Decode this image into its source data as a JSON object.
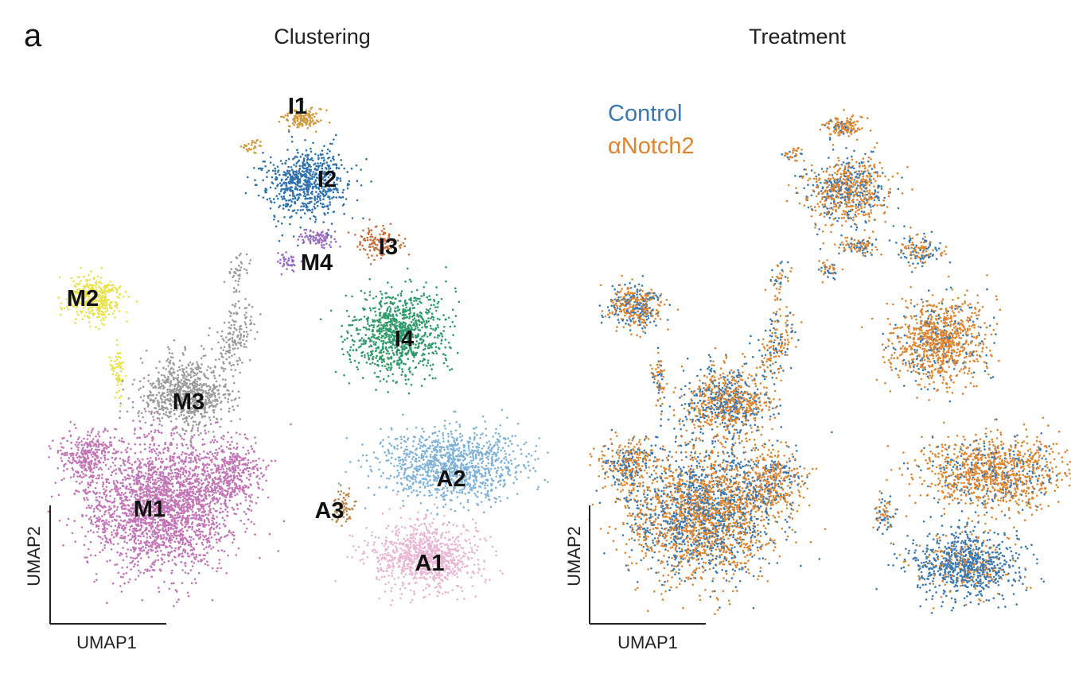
{
  "figure": {
    "panel_letter": "a"
  },
  "chart_data": [
    {
      "type": "scatter",
      "title": "Clustering",
      "xlabel": "UMAP1",
      "ylabel": "UMAP2",
      "grid": false,
      "colors": {
        "M1": "#c374b6",
        "M2": "#e8e34a",
        "M3": "#9b9b9b",
        "M4": "#9a6bc4",
        "I1": "#d39a3e",
        "I2": "#2f72b0",
        "I3": "#c8703d",
        "I4": "#2e9a6a",
        "A1": "#eab4d3",
        "A2": "#7fb2da",
        "A3": "#c0874a"
      },
      "clusters": [
        {
          "label": "I1"
        },
        {
          "label": "I2"
        },
        {
          "label": "I3"
        },
        {
          "label": "M4"
        },
        {
          "label": "M2"
        },
        {
          "label": "I4"
        },
        {
          "label": "M3"
        },
        {
          "label": "A2"
        },
        {
          "label": "M1"
        },
        {
          "label": "A3"
        },
        {
          "label": "A1"
        }
      ]
    },
    {
      "type": "scatter",
      "title": "Treatment",
      "xlabel": "UMAP1",
      "ylabel": "UMAP2",
      "grid": false,
      "legend_position": "top-left",
      "series": [
        {
          "name": "Control",
          "color": "#3a78b2"
        },
        {
          "name": "αNotch2",
          "color": "#e0852f"
        }
      ]
    }
  ]
}
